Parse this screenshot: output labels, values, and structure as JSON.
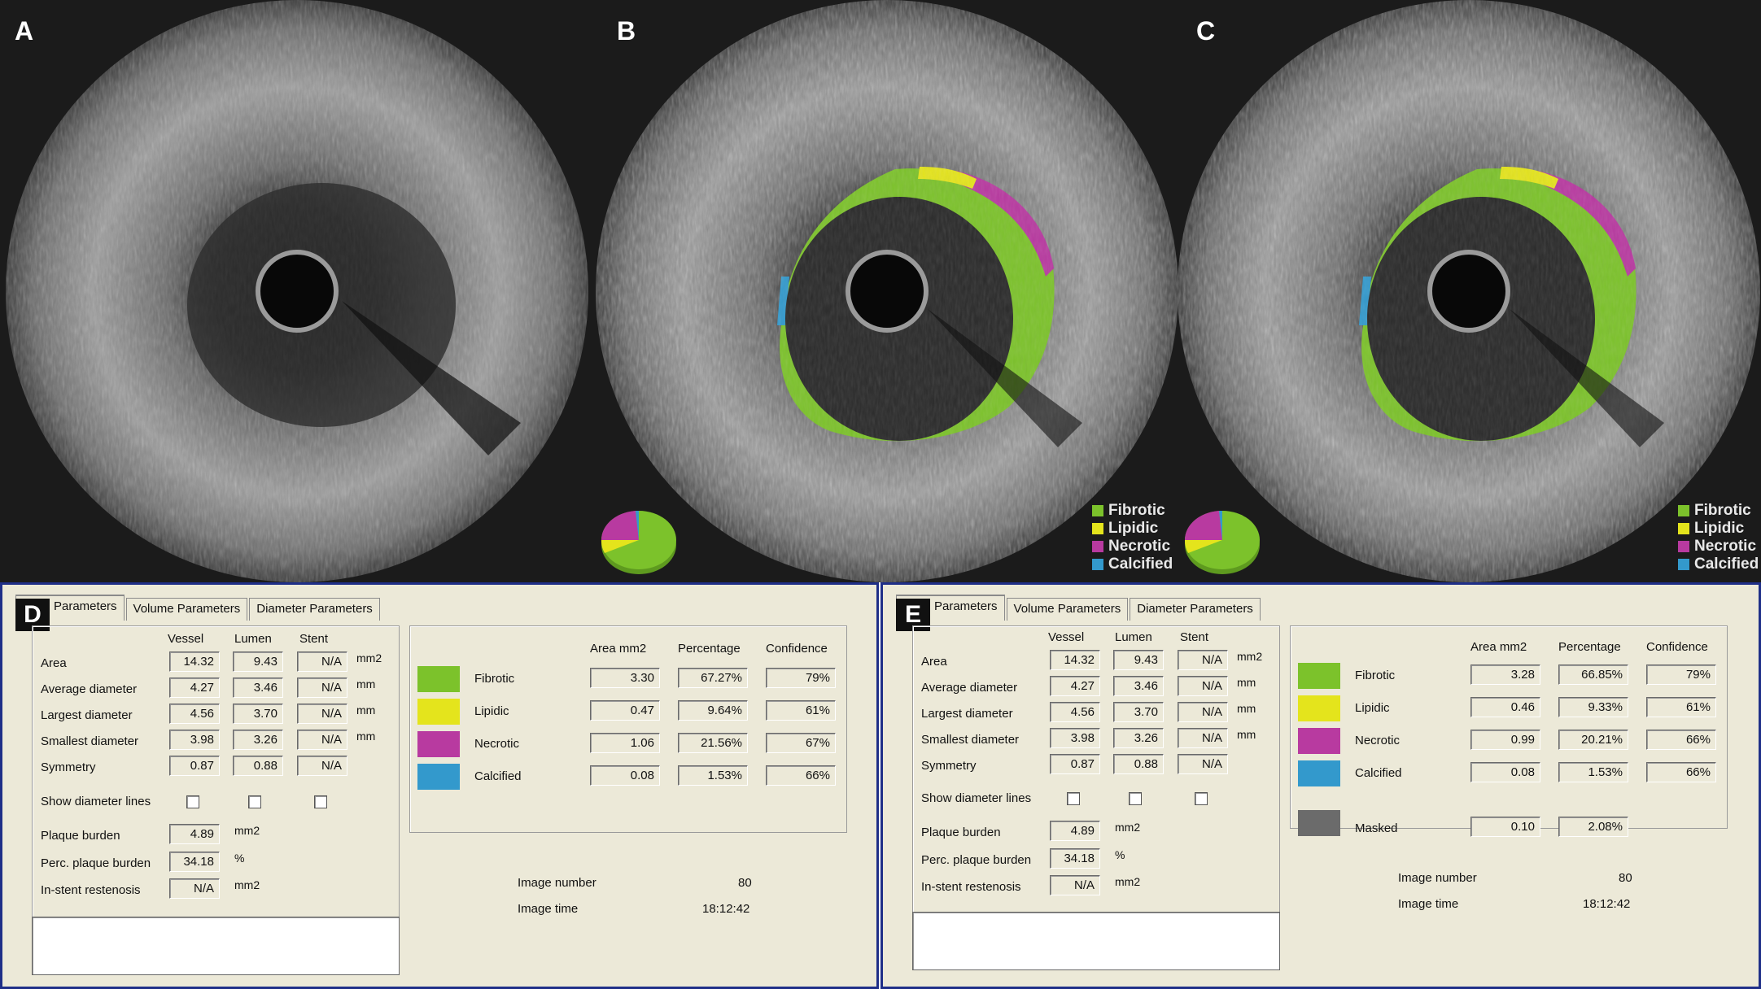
{
  "colors": {
    "fibrotic": "#7cc22b",
    "lipidic": "#e4e41c",
    "necrotic": "#b83aa0",
    "calcified": "#3399cc",
    "masked": "#6b6b6b"
  },
  "panels": {
    "a": "A",
    "b": "B",
    "c": "C",
    "d": "D",
    "e": "E"
  },
  "legend": {
    "fibrotic": "Fibrotic",
    "lipidic": "Lipidic",
    "necrotic": "Necrotic",
    "calcified": "Calcified"
  },
  "tabs": {
    "area": "Parameters",
    "volume": "Volume Parameters",
    "diameter": "Diameter Parameters"
  },
  "columns": {
    "vessel": "Vessel",
    "lumen": "Lumen",
    "stent": "Stent"
  },
  "rows": {
    "area": "Area",
    "avg": "Average diameter",
    "largest": "Largest diameter",
    "smallest": "Smallest diameter",
    "symmetry": "Symmetry",
    "show_lines": "Show diameter lines",
    "plaque": "Plaque burden",
    "perc": "Perc. plaque burden",
    "instent": "In-stent restenosis"
  },
  "units": {
    "mm2": "mm2",
    "mm": "mm",
    "pct": "%"
  },
  "values": {
    "area": [
      "14.32",
      "9.43",
      "N/A"
    ],
    "avg": [
      "4.27",
      "3.46",
      "N/A"
    ],
    "largest": [
      "4.56",
      "3.70",
      "N/A"
    ],
    "smallest": [
      "3.98",
      "3.26",
      "N/A"
    ],
    "symmetry": [
      "0.87",
      "0.88",
      "N/A"
    ],
    "plaque": "4.89",
    "perc": "34.18",
    "instent": "N/A"
  },
  "tissue_headers": {
    "area": "Area mm2",
    "percentage": "Percentage",
    "confidence": "Confidence"
  },
  "tissue_labels": {
    "fibrotic": "Fibrotic",
    "lipidic": "Lipidic",
    "necrotic": "Necrotic",
    "calcified": "Calcified",
    "masked": "Masked"
  },
  "d_tissue": {
    "fibrotic": [
      "3.30",
      "67.27%",
      "79%"
    ],
    "lipidic": [
      "0.47",
      "9.64%",
      "61%"
    ],
    "necrotic": [
      "1.06",
      "21.56%",
      "67%"
    ],
    "calcified": [
      "0.08",
      "1.53%",
      "66%"
    ]
  },
  "e_tissue": {
    "fibrotic": [
      "3.28",
      "66.85%",
      "79%"
    ],
    "lipidic": [
      "0.46",
      "9.33%",
      "61%"
    ],
    "necrotic": [
      "0.99",
      "20.21%",
      "66%"
    ],
    "calcified": [
      "0.08",
      "1.53%",
      "66%"
    ],
    "masked": [
      "0.10",
      "2.08%"
    ]
  },
  "image_info": {
    "number_label": "Image number",
    "number": "80",
    "time_label": "Image time",
    "time": "18:12:42"
  }
}
